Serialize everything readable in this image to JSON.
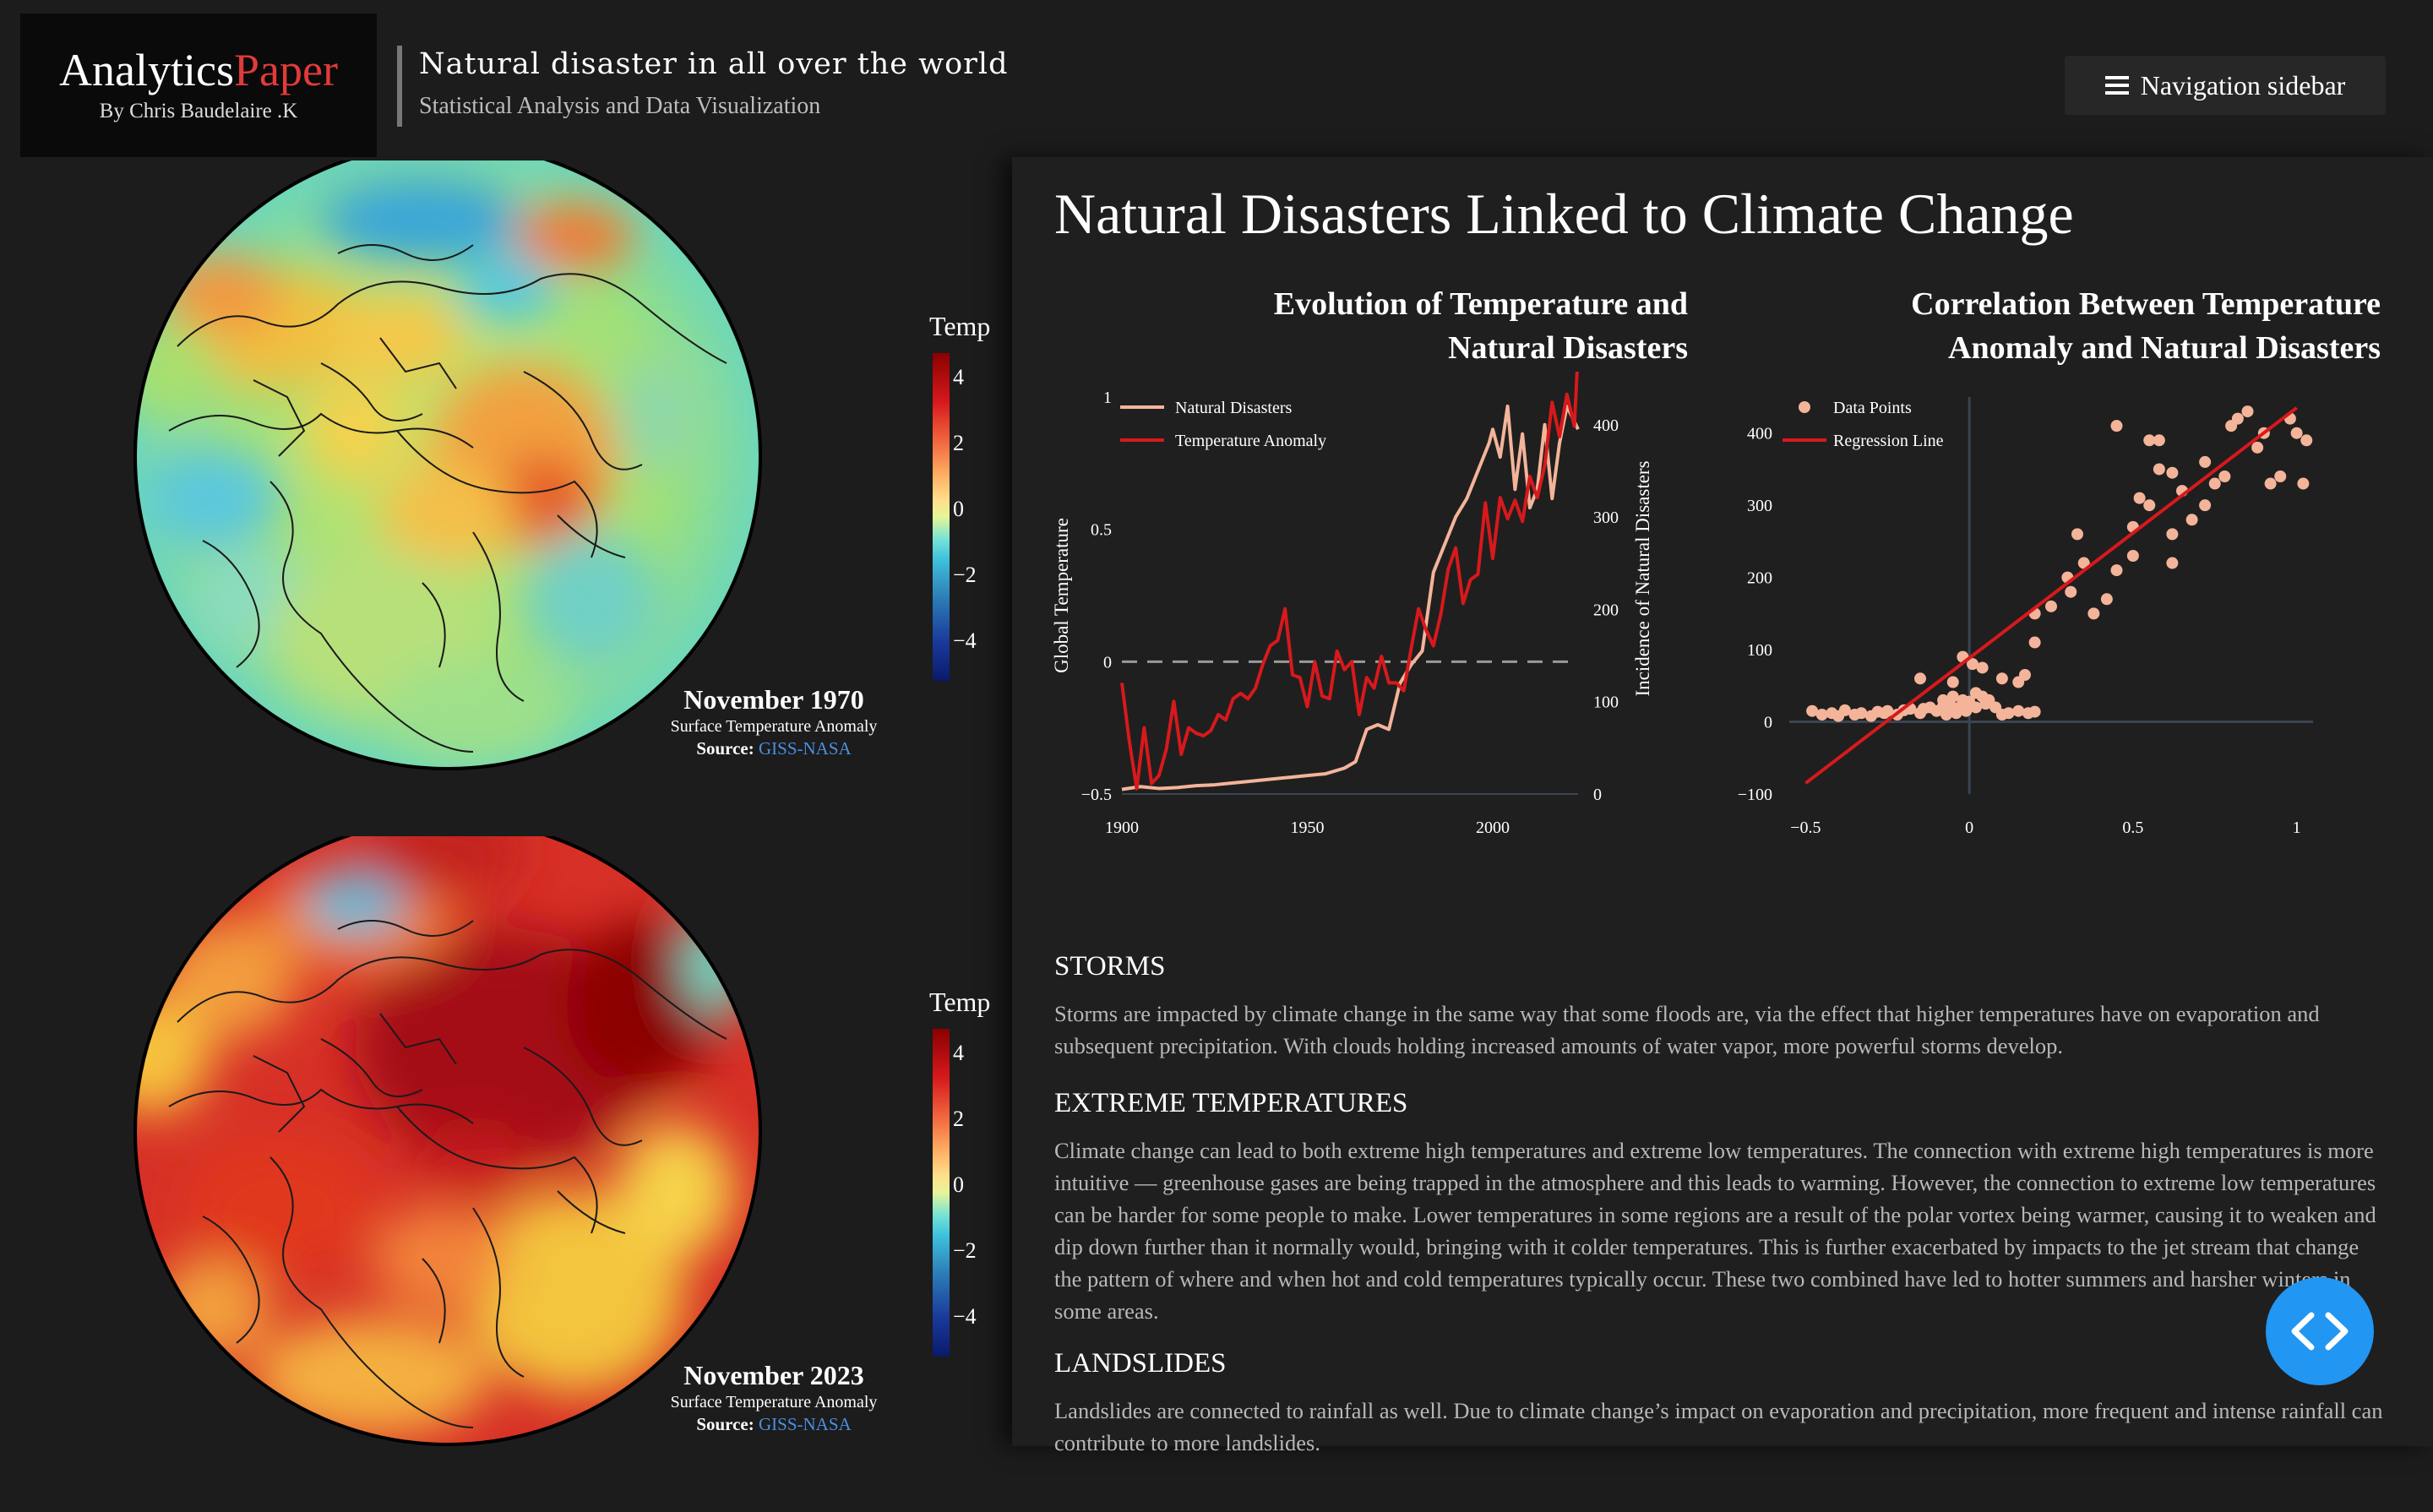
{
  "brand": {
    "name_part1": "Analytics",
    "name_part2": "Paper",
    "byline": "By Chris Baudelaire .K"
  },
  "header": {
    "title": "Natural disaster in all over the world",
    "subtitle": "Statistical Analysis and Data Visualization"
  },
  "nav": {
    "label": "Navigation sidebar",
    "icon": "hamburger-menu-icon"
  },
  "globes": [
    {
      "month": "November 1970",
      "caption": "Surface Temperature Anomaly",
      "source_label": "Source:",
      "source_link": "GISS-NASA",
      "colorbar_title": "Temp",
      "colorbar_ticks": [
        "4",
        "2",
        "0",
        "−2",
        "−4"
      ]
    },
    {
      "month": "November 2023",
      "caption": "Surface Temperature Anomaly",
      "source_label": "Source:",
      "source_link": "GISS-NASA",
      "colorbar_title": "Temp",
      "colorbar_ticks": [
        "4",
        "2",
        "0",
        "−2",
        "−4"
      ]
    }
  ],
  "panel": {
    "title": "Natural Disasters Linked to Climate Change"
  },
  "chart_data": [
    {
      "type": "line",
      "title_line1": "Evolution of Temperature and",
      "title_line2": "Natural Disasters",
      "ylabel": "Global Temperature",
      "y2label": "Incidence of Natural Disasters",
      "xlim": [
        1900,
        2023
      ],
      "ylim": [
        -0.5,
        1
      ],
      "y2lim": [
        0,
        430
      ],
      "x_ticks": [
        "1900",
        "1950",
        "2000"
      ],
      "y_ticks": [
        "1",
        "0.5",
        "0",
        "−0.5"
      ],
      "y2_ticks": [
        "400",
        "300",
        "200",
        "100",
        "0"
      ],
      "legend": "top-left",
      "series": [
        {
          "name": "Natural Disasters",
          "color": "#f4b49a",
          "axis": "y2",
          "x": [
            1900,
            1905,
            1910,
            1915,
            1920,
            1925,
            1930,
            1935,
            1940,
            1945,
            1950,
            1955,
            1960,
            1963,
            1966,
            1969,
            1972,
            1975,
            1978,
            1981,
            1984,
            1987,
            1990,
            1993,
            1996,
            1999,
            2000,
            2002,
            2004,
            2006,
            2008,
            2010,
            2012,
            2014,
            2016,
            2018,
            2020,
            2023
          ],
          "values": [
            5,
            8,
            6,
            7,
            9,
            10,
            12,
            14,
            16,
            18,
            20,
            22,
            28,
            35,
            70,
            75,
            70,
            120,
            140,
            155,
            240,
            270,
            300,
            320,
            350,
            380,
            395,
            365,
            420,
            330,
            390,
            310,
            330,
            400,
            320,
            380,
            420,
            395
          ]
        },
        {
          "name": "Temperature Anomaly",
          "color": "#d7191c",
          "axis": "y",
          "x": [
            1900,
            1902,
            1904,
            1906,
            1908,
            1910,
            1912,
            1914,
            1916,
            1918,
            1920,
            1922,
            1924,
            1926,
            1928,
            1930,
            1932,
            1934,
            1936,
            1938,
            1940,
            1942,
            1944,
            1946,
            1948,
            1950,
            1952,
            1954,
            1956,
            1958,
            1960,
            1962,
            1964,
            1966,
            1968,
            1970,
            1972,
            1974,
            1976,
            1978,
            1980,
            1982,
            1984,
            1986,
            1988,
            1990,
            1992,
            1994,
            1996,
            1998,
            2000,
            2002,
            2004,
            2006,
            2008,
            2010,
            2012,
            2014,
            2016,
            2018,
            2020,
            2022,
            2023
          ],
          "values": [
            -0.08,
            -0.3,
            -0.48,
            -0.25,
            -0.46,
            -0.43,
            -0.33,
            -0.15,
            -0.35,
            -0.25,
            -0.27,
            -0.28,
            -0.26,
            -0.2,
            -0.22,
            -0.14,
            -0.12,
            -0.14,
            -0.1,
            -0.01,
            0.06,
            0.08,
            0.2,
            -0.05,
            -0.06,
            -0.17,
            0.0,
            -0.13,
            -0.14,
            0.04,
            -0.03,
            0.0,
            -0.2,
            -0.06,
            -0.1,
            0.02,
            -0.08,
            -0.08,
            -0.11,
            0.05,
            0.2,
            0.12,
            0.06,
            0.18,
            0.35,
            0.43,
            0.22,
            0.31,
            0.33,
            0.6,
            0.39,
            0.62,
            0.54,
            0.61,
            0.53,
            0.7,
            0.62,
            0.74,
            0.98,
            0.85,
            1.01,
            0.89,
            1.17
          ]
        }
      ]
    },
    {
      "type": "scatter",
      "title_line1": "Correlation Between Temperature",
      "title_line2": "Anomaly and Natural Disasters",
      "xlim": [
        -0.55,
        1.05
      ],
      "ylim": [
        -100,
        450
      ],
      "x_ticks": [
        "−0.5",
        "0",
        "0.5",
        "1"
      ],
      "y_ticks": [
        "400",
        "300",
        "200",
        "100",
        "0",
        "−100"
      ],
      "legend": "top-left",
      "series": [
        {
          "name": "Data Points",
          "color": "#f4b49a",
          "points": [
            [
              -0.48,
              15
            ],
            [
              -0.45,
              10
            ],
            [
              -0.42,
              12
            ],
            [
              -0.4,
              8
            ],
            [
              -0.38,
              16
            ],
            [
              -0.35,
              10
            ],
            [
              -0.33,
              12
            ],
            [
              -0.3,
              8
            ],
            [
              -0.28,
              14
            ],
            [
              -0.26,
              12
            ],
            [
              -0.25,
              15
            ],
            [
              -0.22,
              10
            ],
            [
              -0.2,
              16
            ],
            [
              -0.18,
              18
            ],
            [
              -0.15,
              12
            ],
            [
              -0.14,
              18
            ],
            [
              -0.12,
              20
            ],
            [
              -0.1,
              15
            ],
            [
              -0.08,
              22
            ],
            [
              -0.08,
              30
            ],
            [
              -0.07,
              10
            ],
            [
              -0.06,
              25
            ],
            [
              -0.05,
              35
            ],
            [
              -0.05,
              18
            ],
            [
              -0.04,
              12
            ],
            [
              -0.03,
              20
            ],
            [
              -0.02,
              30
            ],
            [
              -0.01,
              15
            ],
            [
              0.0,
              22
            ],
            [
              0.0,
              28
            ],
            [
              0.01,
              80
            ],
            [
              0.02,
              40
            ],
            [
              0.02,
              20
            ],
            [
              0.04,
              35
            ],
            [
              0.05,
              25
            ],
            [
              0.06,
              30
            ],
            [
              0.08,
              20
            ],
            [
              0.1,
              10
            ],
            [
              0.12,
              12
            ],
            [
              0.15,
              15
            ],
            [
              0.18,
              12
            ],
            [
              0.2,
              14
            ],
            [
              -0.15,
              60
            ],
            [
              -0.05,
              55
            ],
            [
              -0.02,
              90
            ],
            [
              0.04,
              75
            ],
            [
              0.1,
              60
            ],
            [
              0.15,
              55
            ],
            [
              0.17,
              65
            ],
            [
              0.2,
              110
            ],
            [
              0.2,
              150
            ],
            [
              0.25,
              160
            ],
            [
              0.3,
              200
            ],
            [
              0.31,
              180
            ],
            [
              0.33,
              260
            ],
            [
              0.35,
              220
            ],
            [
              0.38,
              150
            ],
            [
              0.42,
              170
            ],
            [
              0.45,
              210
            ],
            [
              0.5,
              230
            ],
            [
              0.5,
              270
            ],
            [
              0.52,
              310
            ],
            [
              0.55,
              300
            ],
            [
              0.55,
              390
            ],
            [
              0.58,
              350
            ],
            [
              0.62,
              345
            ],
            [
              0.62,
              220
            ],
            [
              0.62,
              260
            ],
            [
              0.65,
              320
            ],
            [
              0.68,
              280
            ],
            [
              0.72,
              300
            ],
            [
              0.72,
              360
            ],
            [
              0.75,
              330
            ],
            [
              0.78,
              340
            ],
            [
              0.8,
              410
            ],
            [
              0.82,
              420
            ],
            [
              0.85,
              430
            ],
            [
              0.88,
              380
            ],
            [
              0.9,
              400
            ],
            [
              0.92,
              330
            ],
            [
              0.95,
              340
            ],
            [
              0.98,
              420
            ],
            [
              1.0,
              400
            ],
            [
              1.02,
              330
            ],
            [
              1.03,
              390
            ],
            [
              0.45,
              410
            ],
            [
              0.58,
              390
            ]
          ]
        },
        {
          "name": "Regression Line",
          "color": "#d7191c",
          "line": [
            [
              -0.5,
              -85
            ],
            [
              1.0,
              435
            ]
          ]
        }
      ]
    }
  ],
  "sections": [
    {
      "heading": "STORMS",
      "body": "Storms are impacted by climate change in the same way that some floods are, via the effect that higher temperatures have on evaporation and subsequent precipitation. With clouds holding increased amounts of water vapor, more powerful storms develop."
    },
    {
      "heading": "EXTREME TEMPERATURES",
      "body": "Climate change can lead to both extreme high temperatures and extreme low temperatures. The connection with extreme high temperatures is more intuitive — greenhouse gases are being trapped in the atmosphere and this leads to warming. However, the connection to extreme low temperatures can be harder for some people to make. Lower temperatures in some regions are a result of the polar vortex being warmer, causing it to weaken and dip down further than it normally would, bringing with it colder temperatures. This is further exacerbated by impacts to the jet stream that change the pattern of where and when hot and cold temperatures typically occur. These two combined have led to hotter summers and harsher winters in some areas."
    },
    {
      "heading": "LANDSLIDES",
      "body": "Landslides are connected to rainfall as well. Due to climate change’s impact on evaporation and precipitation, more frequent and intense rainfall can contribute to more landslides."
    }
  ],
  "fab": {
    "icon": "code-brackets-icon"
  }
}
